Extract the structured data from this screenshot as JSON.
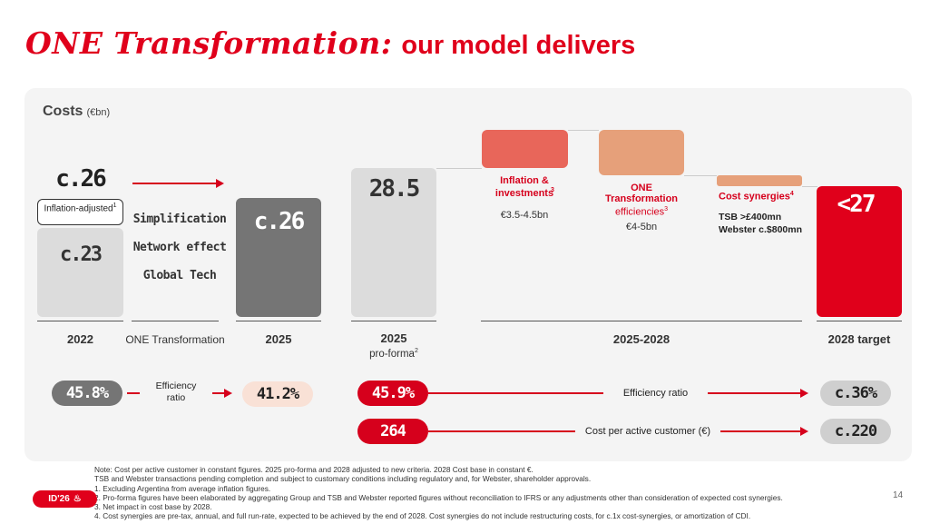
{
  "title": {
    "script": "ONE Transformation:",
    "rest": "our model delivers"
  },
  "costs": {
    "label": "Costs",
    "unit": "(€bn)"
  },
  "chart_data": {
    "type": "bar",
    "title": "Costs (€bn)",
    "categories": [
      "2022",
      "ONE Transformation",
      "2025",
      "2025 pro-forma",
      "2025-2028",
      "2028 target"
    ],
    "bars": {
      "y2022": {
        "value_label": "c.23",
        "inflation_adjusted_label": "c.26",
        "inflation_note": "Inflation-adjusted",
        "inflation_note_sup": "1",
        "value": 23,
        "inflation_adjusted_value": 26
      },
      "y2025": {
        "value_label": "c.26",
        "value": 26
      },
      "y2025pf": {
        "value_label": "28.5",
        "value": 28.5,
        "sublabel": "pro-forma",
        "sublabel_sup": "2"
      },
      "target": {
        "value_label": "<27",
        "value": 27
      }
    },
    "drivers": [
      "Simplification",
      "Network effect",
      "Global Tech"
    ],
    "bridge": [
      {
        "name": "Inflation & investments",
        "sup": "3",
        "range": "€3.5-4.5bn",
        "color": "#e8665a",
        "direction": "up"
      },
      {
        "name_line1": "ONE",
        "name_line2": "Transformation",
        "name_line3": "efficiencies",
        "sup": "3",
        "range": "€4-5bn",
        "color": "#e6a07a",
        "direction": "down"
      },
      {
        "name": "Cost synergies",
        "sup": "4",
        "line1": "TSB >£400mn",
        "line2": "Webster c.$800mn",
        "color": "#e6a07a",
        "direction": "down"
      }
    ],
    "efficiency": {
      "y2022": "45.8%",
      "label_line1": "Efficiency",
      "label_line2": "ratio",
      "y2025": "41.2%",
      "y2025pf": "45.9%",
      "label_long": "Efficiency ratio",
      "target": "c.36%"
    },
    "cost_per_customer": {
      "y2025pf": "264",
      "label": "Cost per active customer (€)",
      "target": "c.220"
    }
  },
  "footnotes": [
    "Note: Cost per active customer in constant figures. 2025 pro-forma and 2028 adjusted to new criteria. 2028 Cost base in constant €.",
    "TSB and Webster transactions pending completion and subject to customary conditions including regulatory and, for Webster, shareholder approvals.",
    "1. Excluding Argentina from average inflation figures.",
    "2. Pro-forma figures have been elaborated by aggregating Group and TSB and Webster reported figures without reconciliation to IFRS or any adjustments other than consideration of expected cost synergies.",
    "3. Net impact in cost base by 2028.",
    "4. Cost synergies are pre-tax, annual, and full run-rate, expected to be achieved by the end of 2028. Cost synergies do not include restructuring costs, for c.1x cost-synergies, or amortization of CDI."
  ],
  "badge": {
    "text": "ID'26"
  },
  "page_number": "14",
  "colors": {
    "red": "#e0001b",
    "dark_gray": "#757575",
    "light_gray": "#dcdcdc",
    "salmon": "#e8665a",
    "peach": "#e6a07a",
    "pale_peach": "#f9e1d6"
  }
}
